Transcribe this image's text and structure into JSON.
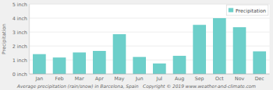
{
  "chart_data": {
    "type": "bar",
    "y_label": "Precipitation",
    "categories": [
      "Jan",
      "Feb",
      "Mar",
      "Apr",
      "May",
      "Jun",
      "Jul",
      "Aug",
      "Sep",
      "Oct",
      "Nov",
      "Dec"
    ],
    "series": [
      {
        "name": "Precipitation",
        "color": "#6dcfca",
        "values": [
          1.42,
          1.18,
          1.54,
          1.65,
          2.85,
          1.22,
          0.75,
          1.3,
          3.52,
          4.0,
          3.35,
          1.62
        ]
      }
    ],
    "ylim": [
      0,
      5
    ],
    "yticks": [
      {
        "value": 0,
        "label": "0 inch"
      },
      {
        "value": 1,
        "label": "1 inch"
      },
      {
        "value": 2,
        "label": "2 inch"
      },
      {
        "value": 3,
        "label": "3 inch"
      },
      {
        "value": 4,
        "label": "4 inch"
      },
      {
        "value": 5,
        "label": "5 inch"
      }
    ],
    "grid": true,
    "legend": "top-right",
    "annotations": [
      "Average precipitation (rain/snow) in Barcelona, Spain   Copyright © 2019 www.weather-and-climate.com"
    ]
  }
}
